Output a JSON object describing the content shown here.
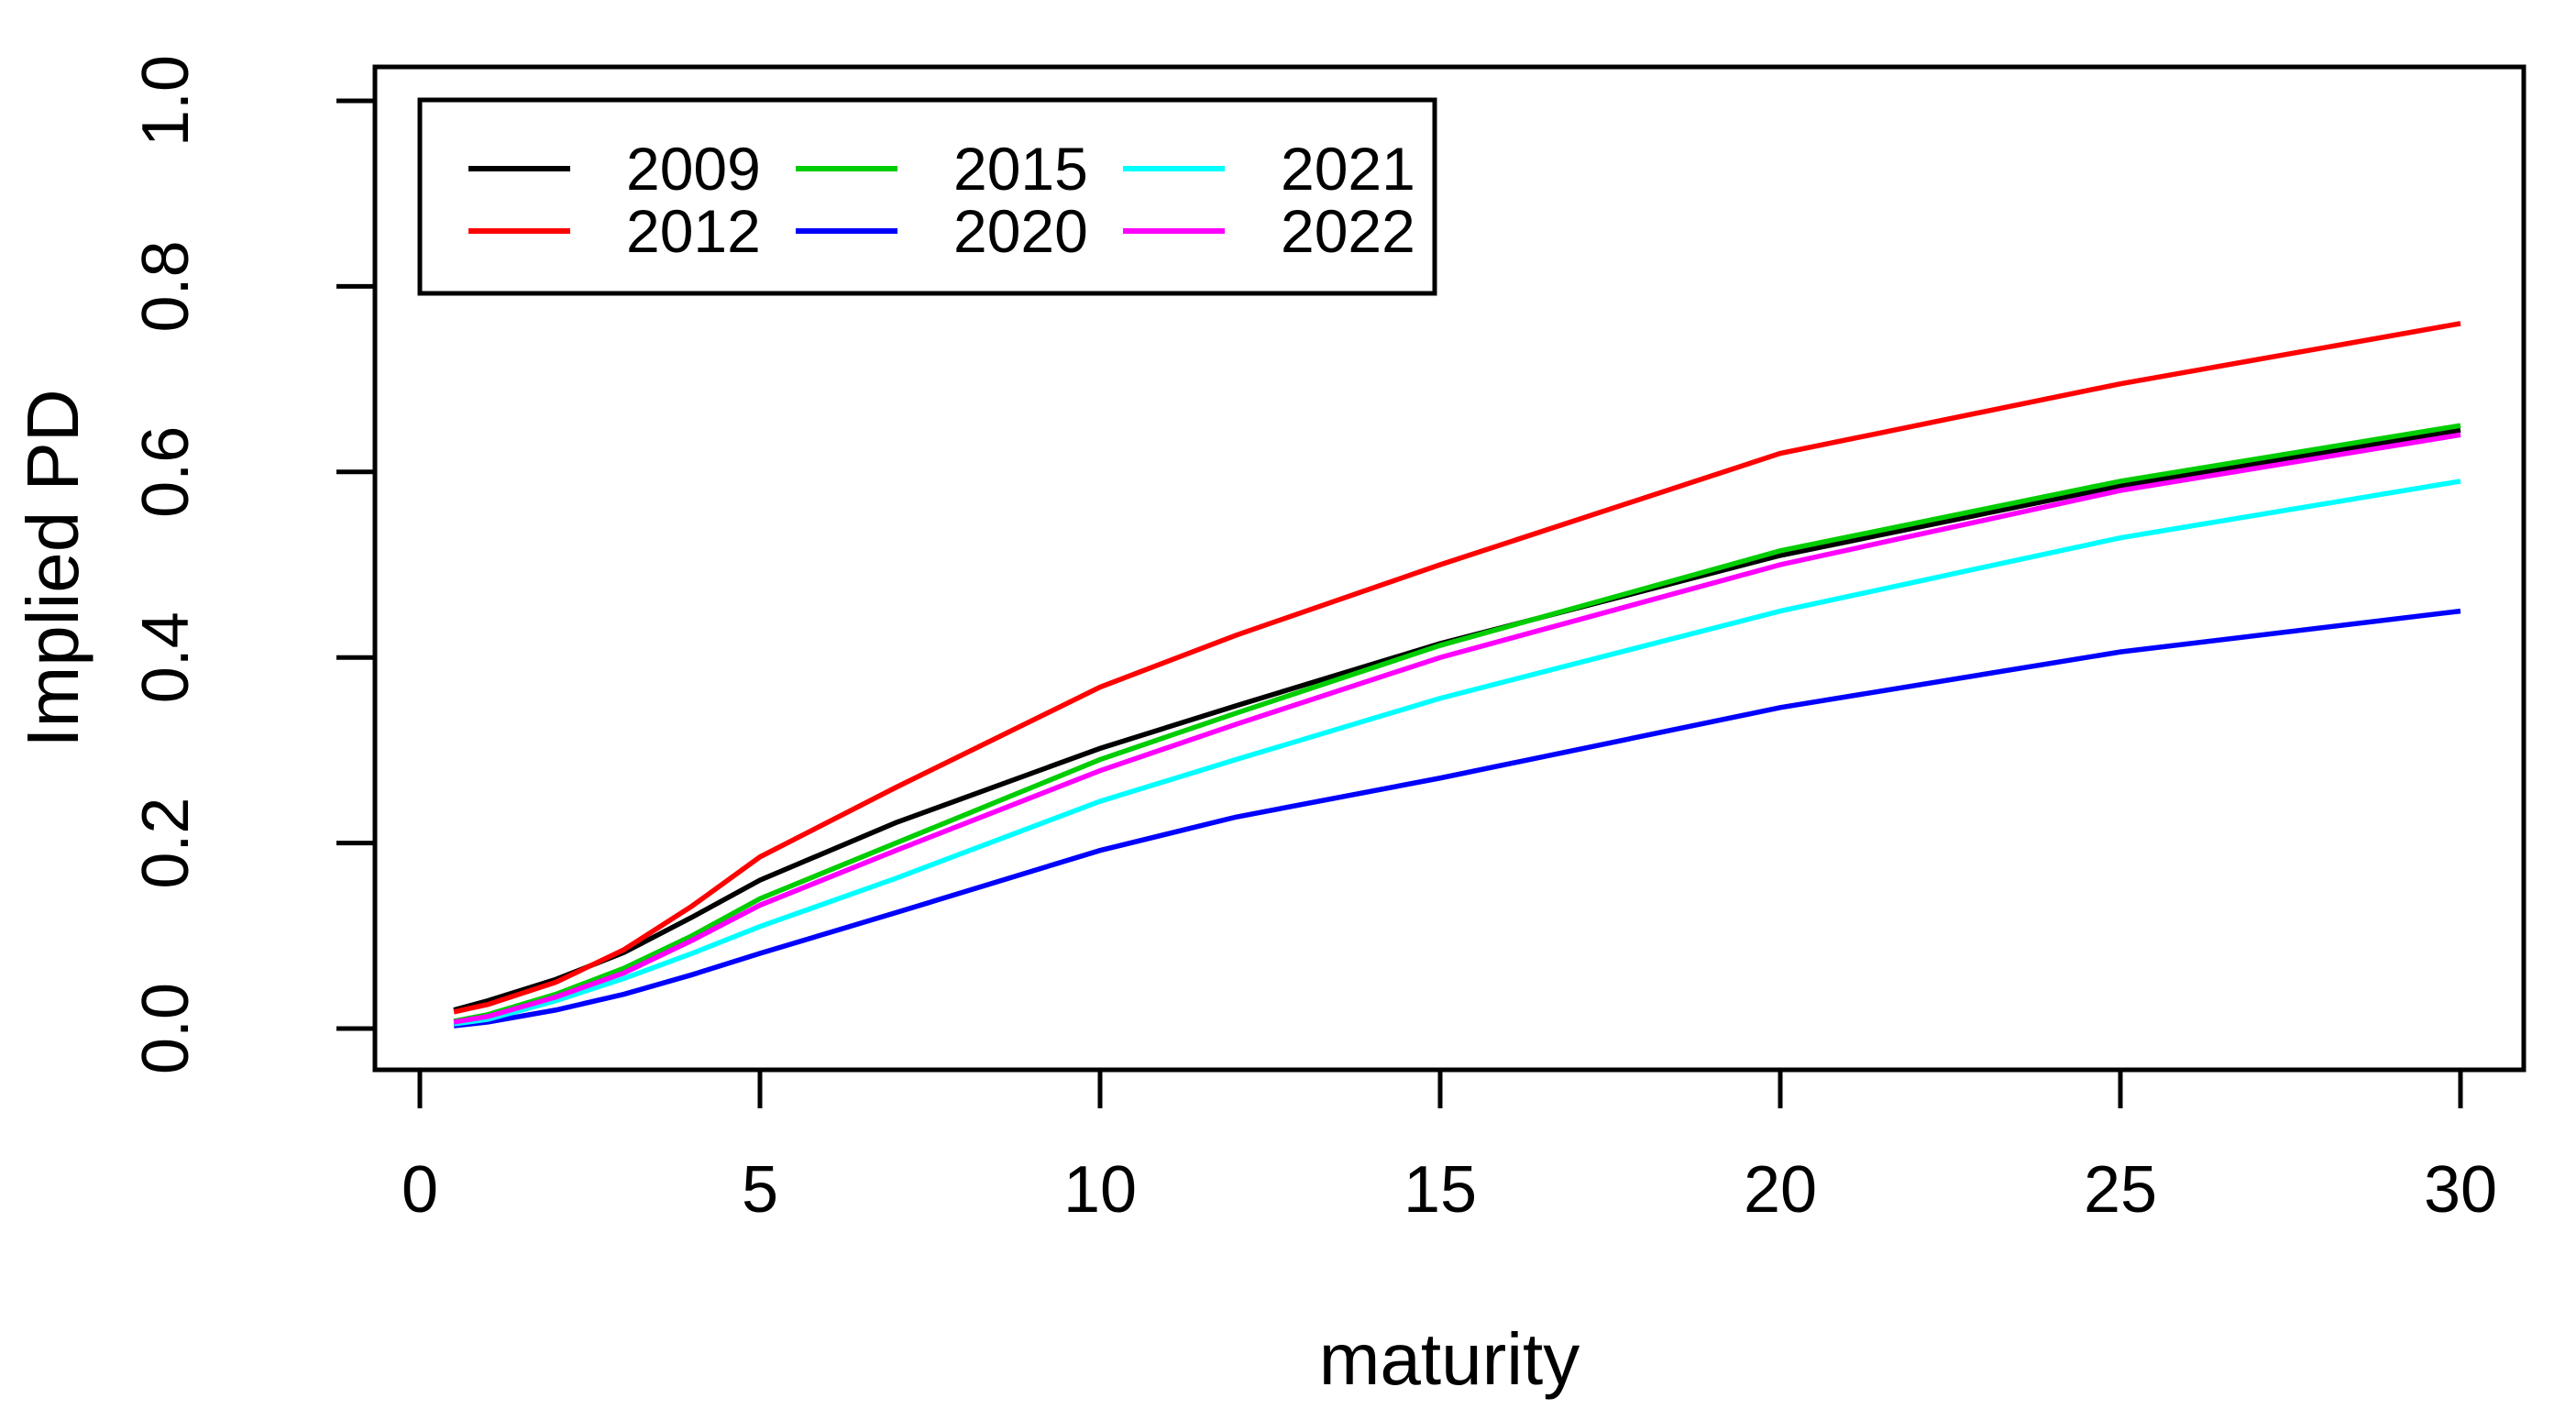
{
  "chart_data": {
    "type": "line",
    "title": "",
    "xlabel": "maturity",
    "ylabel": "Implied PD",
    "xlim": [
      0,
      30
    ],
    "ylim": [
      0.0,
      1.0
    ],
    "x_ticks": [
      0,
      5,
      10,
      15,
      20,
      25,
      30
    ],
    "x_tick_labels": [
      "0",
      "5",
      "10",
      "15",
      "20",
      "25",
      "30"
    ],
    "y_ticks": [
      0.0,
      0.2,
      0.4,
      0.6,
      0.8,
      1.0
    ],
    "y_tick_labels": [
      "0.0",
      "0.2",
      "0.4",
      "0.6",
      "0.8",
      "1.0"
    ],
    "grid": false,
    "legend_position": "top-left-inside",
    "x": [
      0.5,
      1,
      2,
      3,
      4,
      5,
      7,
      10,
      12,
      15,
      20,
      25,
      30
    ],
    "series": [
      {
        "name": "2009",
        "color": "#000000",
        "values": [
          0.02,
          0.03,
          0.053,
          0.082,
          0.12,
          0.16,
          0.222,
          0.302,
          0.348,
          0.415,
          0.51,
          0.585,
          0.645
        ]
      },
      {
        "name": "2012",
        "color": "#FF0000",
        "values": [
          0.018,
          0.026,
          0.05,
          0.085,
          0.132,
          0.185,
          0.26,
          0.368,
          0.424,
          0.5,
          0.62,
          0.695,
          0.76
        ]
      },
      {
        "name": "2015",
        "color": "#00CD00",
        "values": [
          0.008,
          0.015,
          0.037,
          0.065,
          0.1,
          0.14,
          0.2,
          0.29,
          0.34,
          0.413,
          0.515,
          0.59,
          0.65
        ]
      },
      {
        "name": "2020",
        "color": "#0000FF",
        "values": [
          0.003,
          0.007,
          0.02,
          0.037,
          0.058,
          0.081,
          0.125,
          0.192,
          0.228,
          0.27,
          0.346,
          0.406,
          0.45
        ]
      },
      {
        "name": "2021",
        "color": "#00FFFF",
        "values": [
          0.005,
          0.01,
          0.03,
          0.054,
          0.081,
          0.11,
          0.162,
          0.245,
          0.29,
          0.356,
          0.45,
          0.529,
          0.59
        ]
      },
      {
        "name": "2022",
        "color": "#FF00FF",
        "values": [
          0.007,
          0.013,
          0.034,
          0.06,
          0.095,
          0.133,
          0.192,
          0.278,
          0.328,
          0.4,
          0.5,
          0.58,
          0.64
        ]
      }
    ],
    "legend": {
      "entries": [
        {
          "label": "2009",
          "color": "#000000"
        },
        {
          "label": "2012",
          "color": "#FF0000"
        },
        {
          "label": "2015",
          "color": "#00CD00"
        },
        {
          "label": "2020",
          "color": "#0000FF"
        },
        {
          "label": "2021",
          "color": "#00FFFF"
        },
        {
          "label": "2022",
          "color": "#FF00FF"
        }
      ]
    }
  }
}
